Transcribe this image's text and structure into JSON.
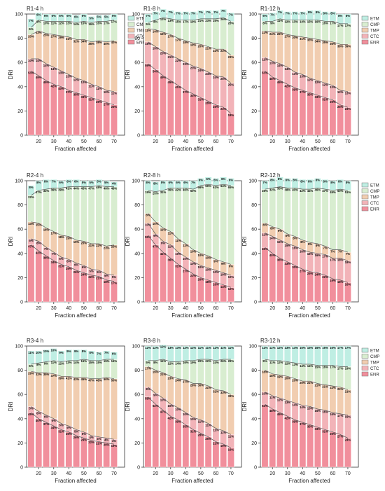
{
  "colors": {
    "ETM": "#bfeee3",
    "CMP": "#d8edd0",
    "TMP": "#f1cdb0",
    "CTC": "#f2b3b8",
    "ENR": "#f18f9c",
    "grid": "#cccccc",
    "axis": "#333333",
    "bar_edge": "#ffffff"
  },
  "chart_data": [
    {
      "type": "bar",
      "title": "R1-4 h",
      "xlabel": "Fraction affected",
      "ylabel": "DRI",
      "ylim": [
        0,
        100
      ],
      "xticks": [
        "20",
        "30",
        "40",
        "50",
        "60",
        "70"
      ],
      "legend": [
        "ETM",
        "CMP",
        "TMP",
        "CTC",
        "ENR"
      ],
      "series": [
        {
          "name": "ENR",
          "labels": [
            "53%",
            "49%",
            "45%",
            "42%",
            "40%",
            "37%",
            "35%",
            "33%",
            "31%",
            "29%",
            "27%",
            "25%"
          ]
        },
        {
          "name": "CTC",
          "labels": [
            "10%",
            "14%",
            "14%",
            "14%",
            "13%",
            "13%",
            "12%",
            "12%",
            "11%",
            "11%",
            "10%",
            "11%"
          ]
        },
        {
          "name": "TMP",
          "labels": [
            "20%",
            "23%",
            "25%",
            "27%",
            "29%",
            "31%",
            "32%",
            "34%",
            "35%",
            "38%",
            "40%",
            "42%"
          ]
        },
        {
          "name": "CMP",
          "labels": [
            "6%",
            "9%",
            "10%",
            "11%",
            "12%",
            "13%",
            "14%",
            "15%",
            "16%",
            "16%",
            "17%",
            "17%"
          ]
        },
        {
          "name": "ETM",
          "labels": [
            "7%",
            "6%",
            "6%",
            "6%",
            "6%",
            "6%",
            "6%",
            "6%",
            "5%",
            "5%",
            "5%",
            "5%"
          ]
        }
      ]
    },
    {
      "type": "bar",
      "title": "R1-8 h",
      "xlabel": "Fraction affected",
      "ylabel": "DRI",
      "ylim": [
        0,
        100
      ],
      "xticks": [
        "20",
        "30",
        "40",
        "50",
        "60",
        "70"
      ],
      "series": [
        {
          "name": "ENR",
          "labels": [
            "59%",
            "54%",
            "49%",
            "45%",
            "41%",
            "37%",
            "34%",
            "31%",
            "28%",
            "25%",
            "23%",
            "18%"
          ]
        },
        {
          "name": "CTC",
          "labels": [
            "18%",
            "19%",
            "20%",
            "21%",
            "22%",
            "23%",
            "23%",
            "24%",
            "24%",
            "24%",
            "25%",
            "25%"
          ]
        },
        {
          "name": "TMP",
          "labels": [
            "11%",
            "14%",
            "16%",
            "17%",
            "17%",
            "18%",
            "19%",
            "20%",
            "21%",
            "22%",
            "23%",
            "23%"
          ]
        },
        {
          "name": "CMP",
          "labels": [
            "5%",
            "8%",
            "12%",
            "13%",
            "15%",
            "17%",
            "19%",
            "21%",
            "23%",
            "25%",
            "26%",
            "28%"
          ]
        },
        {
          "name": "ETM",
          "labels": [
            "7%",
            "7%",
            "7%",
            "7%",
            "7%",
            "7%",
            "7%",
            "7%",
            "7%",
            "7%",
            "7%",
            "7%"
          ]
        }
      ]
    },
    {
      "type": "bar",
      "title": "R1-12 h",
      "xlabel": "Fraction affected",
      "ylabel": "DRI",
      "ylim": [
        0,
        100
      ],
      "xticks": [
        "20",
        "30",
        "40",
        "50",
        "60",
        "70"
      ],
      "legend": [
        "ETM",
        "CMP",
        "TMP",
        "CTC",
        "ENR"
      ],
      "series": [
        {
          "name": "ENR",
          "labels": [
            "53%",
            "48%",
            "45%",
            "42%",
            "39%",
            "37%",
            "35%",
            "33%",
            "31%",
            "29%",
            "25%",
            "23%"
          ]
        },
        {
          "name": "CTC",
          "labels": [
            "11%",
            "13%",
            "14%",
            "14%",
            "13%",
            "13%",
            "12%",
            "12%",
            "12%",
            "12%",
            "12%",
            "13%"
          ]
        },
        {
          "name": "TMP",
          "labels": [
            "22%",
            "24%",
            "26%",
            "27%",
            "30%",
            "31%",
            "33%",
            "34%",
            "35%",
            "36%",
            "38%",
            "39%"
          ]
        },
        {
          "name": "CMP",
          "labels": [
            "8%",
            "9%",
            "11%",
            "12%",
            "13%",
            "14%",
            "15%",
            "16%",
            "16%",
            "17%",
            "17%",
            "17%"
          ]
        },
        {
          "name": "ETM",
          "labels": [
            "6%",
            "7%",
            "7%",
            "7%",
            "7%",
            "7%",
            "8%",
            "8%",
            "8%",
            "8%",
            "8%",
            "8%"
          ]
        }
      ]
    },
    {
      "type": "bar",
      "title": "R2-4 h",
      "xlabel": "Fraction affected",
      "ylabel": "DRI",
      "ylim": [
        0,
        100
      ],
      "xticks": [
        "20",
        "30",
        "40",
        "50",
        "60",
        "70"
      ],
      "series": [
        {
          "name": "ENR",
          "labels": [
            "47%",
            "42%",
            "38%",
            "34%",
            "31%",
            "29%",
            "26%",
            "24%",
            "22%",
            "21%",
            "18%",
            "17%"
          ]
        },
        {
          "name": "CTC",
          "labels": [
            "5%",
            "8%",
            "7%",
            "7%",
            "6%",
            "6%",
            "6%",
            "6%",
            "5%",
            "5%",
            "5%",
            "5%"
          ]
        },
        {
          "name": "TMP",
          "labels": [
            "14%",
            "15%",
            "16%",
            "17%",
            "18%",
            "19%",
            "19%",
            "20%",
            "21%",
            "22%",
            "23%",
            "25%"
          ]
        },
        {
          "name": "CMP",
          "labels": [
            "22%",
            "27%",
            "32%",
            "36%",
            "39%",
            "41%",
            "44%",
            "45%",
            "47%",
            "48%",
            "49%",
            "48%"
          ]
        },
        {
          "name": "ETM",
          "labels": [
            "8%",
            "8%",
            "8%",
            "7%",
            "6%",
            "6%",
            "6%",
            "5%",
            "5%",
            "5%",
            "5%",
            "4%"
          ]
        }
      ]
    },
    {
      "type": "bar",
      "title": "R2-8 h",
      "xlabel": "Fraction affected",
      "ylabel": "DRI",
      "ylim": [
        0,
        100
      ],
      "xticks": [
        "20",
        "30",
        "40",
        "50",
        "60",
        "70"
      ],
      "series": [
        {
          "name": "ENR",
          "labels": [
            "55%",
            "47%",
            "41%",
            "36%",
            "31%",
            "27%",
            "23%",
            "20%",
            "18%",
            "16%",
            "14%",
            "12%"
          ]
        },
        {
          "name": "CTC",
          "labels": [
            "10%",
            "9%",
            "9%",
            "11%",
            "10%",
            "10%",
            "10%",
            "10%",
            "10%",
            "10%",
            "10%",
            "10%"
          ]
        },
        {
          "name": "TMP",
          "labels": [
            "8%",
            "10%",
            "11%",
            "11%",
            "11%",
            "11%",
            "10%",
            "10%",
            "10%",
            "9%",
            "9%",
            "9%"
          ]
        },
        {
          "name": "CMP",
          "labels": [
            "19%",
            "25%",
            "31%",
            "36%",
            "42%",
            "46%",
            "50%",
            "56%",
            "59%",
            "61%",
            "64%",
            "65%"
          ]
        },
        {
          "name": "ETM",
          "labels": [
            "8%",
            "8%",
            "8%",
            "6%",
            "6%",
            "6%",
            "7%",
            "6%",
            "6%",
            "6%",
            "6%",
            "6%"
          ]
        }
      ]
    },
    {
      "type": "bar",
      "title": "R2-12 h",
      "xlabel": "Fraction affected",
      "ylabel": "DRI",
      "ylim": [
        0,
        100
      ],
      "xticks": [
        "20",
        "30",
        "40",
        "50",
        "60",
        "70"
      ],
      "legend": [
        "ETM",
        "CMP",
        "TMP",
        "CTC",
        "ENR"
      ],
      "series": [
        {
          "name": "ENR",
          "labels": [
            "45%",
            "40%",
            "36%",
            "33%",
            "30%",
            "27%",
            "25%",
            "24%",
            "22%",
            "19%",
            "18%",
            "16%"
          ]
        },
        {
          "name": "CTC",
          "labels": [
            "12%",
            "14%",
            "15%",
            "15%",
            "16%",
            "16%",
            "16%",
            "16%",
            "17%",
            "17%",
            "18%",
            "18%"
          ]
        },
        {
          "name": "TMP",
          "labels": [
            "8%",
            "8%",
            "9%",
            "8%",
            "8%",
            "8%",
            "8%",
            "8%",
            "7%",
            "7%",
            "7%",
            "7%"
          ]
        },
        {
          "name": "CMP",
          "labels": [
            "28%",
            "32%",
            "35%",
            "38%",
            "40%",
            "42%",
            "44%",
            "46%",
            "47%",
            "49%",
            "50%",
            "51%"
          ]
        },
        {
          "name": "ETM",
          "labels": [
            "7%",
            "8%",
            "8%",
            "8%",
            "8%",
            "8%",
            "8%",
            "8%",
            "8%",
            "8%",
            "8%",
            "8%"
          ]
        }
      ]
    },
    {
      "type": "bar",
      "title": "R3-4 h",
      "xlabel": "Fraction affected",
      "ylabel": "DRI",
      "ylim": [
        0,
        100
      ],
      "xticks": [
        "20",
        "30",
        "40",
        "50",
        "60",
        "70"
      ],
      "series": [
        {
          "name": "ENR",
          "labels": [
            "45%",
            "40%",
            "37%",
            "34%",
            "31%",
            "29%",
            "26%",
            "24%",
            "22%",
            "21%",
            "20%",
            "19%"
          ]
        },
        {
          "name": "CTC",
          "labels": [
            "5%",
            "6%",
            "6%",
            "6%",
            "5%",
            "5%",
            "5%",
            "5%",
            "4%",
            "4%",
            "4%",
            "4%"
          ]
        },
        {
          "name": "TMP",
          "labels": [
            "29%",
            "32%",
            "35%",
            "37%",
            "39%",
            "41%",
            "43%",
            "45%",
            "47%",
            "48%",
            "50%",
            "50%"
          ]
        },
        {
          "name": "CMP",
          "labels": [
            "6%",
            "8%",
            "9%",
            "11%",
            "12%",
            "13%",
            "14%",
            "15%",
            "15%",
            "15%",
            "15%",
            "16%"
          ]
        },
        {
          "name": "ETM",
          "labels": [
            "11%",
            "10%",
            "10%",
            "10%",
            "9%",
            "9%",
            "9%",
            "8%",
            "8%",
            "7%",
            "7%",
            "6%"
          ]
        }
      ]
    },
    {
      "type": "bar",
      "title": "R3-8 h",
      "xlabel": "Fraction affected",
      "ylabel": "DRI",
      "ylim": [
        0,
        100
      ],
      "xticks": [
        "20",
        "30",
        "40",
        "50",
        "60",
        "70"
      ],
      "series": [
        {
          "name": "ENR",
          "labels": [
            "58%",
            "52%",
            "47%",
            "42%",
            "39%",
            "35%",
            "31%",
            "28%",
            "25%",
            "21%",
            "19%",
            "16%"
          ]
        },
        {
          "name": "CTC",
          "labels": [
            "8%",
            "9%",
            "10%",
            "10%",
            "10%",
            "10%",
            "10%",
            "11%",
            "11%",
            "11%",
            "11%",
            "11%"
          ]
        },
        {
          "name": "TMP",
          "labels": [
            "17%",
            "19%",
            "21%",
            "23%",
            "24%",
            "27%",
            "28%",
            "30%",
            "31%",
            "32%",
            "33%",
            "33%"
          ]
        },
        {
          "name": "CMP",
          "labels": [
            "5%",
            "8%",
            "11%",
            "12%",
            "14%",
            "16%",
            "19%",
            "20%",
            "22%",
            "24%",
            "26%",
            "29%"
          ]
        },
        {
          "name": "ETM",
          "labels": [
            "12%",
            "12%",
            "12%",
            "13%",
            "13%",
            "12%",
            "12%",
            "11%",
            "11%",
            "12%",
            "11%",
            "11%"
          ]
        }
      ]
    },
    {
      "type": "bar",
      "title": "R3-12 h",
      "xlabel": "Fraction affected",
      "ylabel": "DRI",
      "ylim": [
        0,
        100
      ],
      "xticks": [
        "20",
        "30",
        "40",
        "50",
        "60",
        "70"
      ],
      "legend": [
        "ETM",
        "CMP",
        "TMP",
        "CTC",
        "ENR"
      ],
      "series": [
        {
          "name": "ENR",
          "labels": [
            "52%",
            "48%",
            "45%",
            "42%",
            "39%",
            "37%",
            "35%",
            "33%",
            "31%",
            "29%",
            "27%",
            "24%"
          ]
        },
        {
          "name": "CTC",
          "labels": [
            "10%",
            "11%",
            "12%",
            "13%",
            "14%",
            "14%",
            "15%",
            "15%",
            "16%",
            "16%",
            "17%",
            "19%"
          ]
        },
        {
          "name": "TMP",
          "labels": [
            "18%",
            "18%",
            "19%",
            "20%",
            "20%",
            "20%",
            "21%",
            "21%",
            "21%",
            "22%",
            "22%",
            "21%"
          ]
        },
        {
          "name": "CMP",
          "labels": [
            "9%",
            "11%",
            "12%",
            "12%",
            "13%",
            "14%",
            "14%",
            "15%",
            "16%",
            "17%",
            "17%",
            "19%"
          ]
        },
        {
          "name": "ETM",
          "labels": [
            "11%",
            "12%",
            "12%",
            "13%",
            "14%",
            "15%",
            "15%",
            "16%",
            "16%",
            "16%",
            "17%",
            "17%"
          ]
        }
      ]
    }
  ]
}
